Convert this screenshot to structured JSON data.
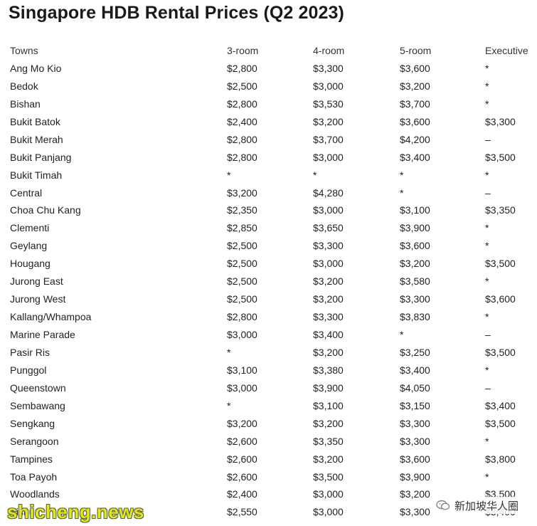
{
  "title": "Singapore HDB Rental Prices (Q2 2023)",
  "headers": [
    "Towns",
    "3-room",
    "4-room",
    "5-room",
    "Executive"
  ],
  "rows": [
    [
      "Ang Mo Kio",
      "$2,800",
      "$3,300",
      "$3,600",
      "*"
    ],
    [
      "Bedok",
      "$2,500",
      "$3,000",
      "$3,200",
      "*"
    ],
    [
      "Bishan",
      "$2,800",
      "$3,530",
      "$3,700",
      "*"
    ],
    [
      "Bukit Batok",
      "$2,400",
      "$3,200",
      "$3,600",
      "$3,300"
    ],
    [
      "Bukit Merah",
      "$2,800",
      "$3,700",
      "$4,200",
      "–"
    ],
    [
      "Bukit Panjang",
      "$2,800",
      "$3,000",
      "$3,400",
      "$3,500"
    ],
    [
      "Bukit Timah",
      "*",
      "*",
      "*",
      "*"
    ],
    [
      "Central",
      "$3,200",
      "$4,280",
      "*",
      "–"
    ],
    [
      "Choa Chu Kang",
      "$2,350",
      "$3,000",
      "$3,100",
      "$3,350"
    ],
    [
      "Clementi",
      "$2,850",
      "$3,650",
      "$3,900",
      "*"
    ],
    [
      "Geylang",
      "$2,500",
      "$3,300",
      "$3,600",
      "*"
    ],
    [
      "Hougang",
      "$2,500",
      "$3,000",
      "$3,200",
      "$3,500"
    ],
    [
      "Jurong East",
      "$2,500",
      "$3,200",
      "$3,580",
      "*"
    ],
    [
      "Jurong West",
      "$2,500",
      "$3,200",
      "$3,300",
      "$3,600"
    ],
    [
      "Kallang/Whampoa",
      "$2,800",
      "$3,300",
      "$3,830",
      "*"
    ],
    [
      "Marine Parade",
      "$3,000",
      "$3,400",
      "*",
      "–"
    ],
    [
      "Pasir Ris",
      "*",
      "$3,200",
      "$3,250",
      "$3,500"
    ],
    [
      "Punggol",
      "$3,100",
      "$3,380",
      "$3,400",
      "*"
    ],
    [
      "Queenstown",
      "$3,000",
      "$3,900",
      "$4,050",
      "–"
    ],
    [
      "Sembawang",
      "*",
      "$3,100",
      "$3,150",
      "$3,400"
    ],
    [
      "Sengkang",
      "$3,200",
      "$3,200",
      "$3,300",
      "$3,500"
    ],
    [
      "Serangoon",
      "$2,600",
      "$3,350",
      "$3,300",
      "*"
    ],
    [
      "Tampines",
      "$2,600",
      "$3,200",
      "$3,600",
      "$3,800"
    ],
    [
      "Toa Payoh",
      "$2,600",
      "$3,500",
      "$3,900",
      "*"
    ],
    [
      "Woodlands",
      "$2,400",
      "$3,000",
      "$3,200",
      "$3,500"
    ],
    [
      "Yishun",
      "$2,550",
      "$3,000",
      "$3,300",
      "$3,400"
    ]
  ],
  "watermark_left": "shicheng.news",
  "watermark_right": "新加坡华人圈",
  "watermark_icon": "wechat-icon",
  "colors": {
    "text": "#222222",
    "title": "#1a1a1a",
    "watermark_yellow": "#e8e030"
  }
}
